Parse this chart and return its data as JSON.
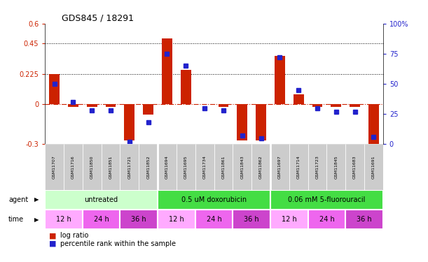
{
  "title": "GDS845 / 18291",
  "samples": [
    "GSM11707",
    "GSM11716",
    "GSM11850",
    "GSM11851",
    "GSM11721",
    "GSM11852",
    "GSM11694",
    "GSM11695",
    "GSM11734",
    "GSM11861",
    "GSM11843",
    "GSM11862",
    "GSM11697",
    "GSM11714",
    "GSM11723",
    "GSM11845",
    "GSM11683",
    "GSM11691"
  ],
  "log_ratio": [
    0.225,
    -0.02,
    -0.02,
    -0.02,
    -0.27,
    -0.08,
    0.49,
    0.255,
    0.0,
    -0.02,
    -0.27,
    -0.27,
    0.36,
    0.07,
    -0.02,
    -0.02,
    -0.02,
    -0.32
  ],
  "percentile_rank": [
    50,
    35,
    28,
    28,
    2,
    18,
    75,
    65,
    30,
    28,
    7,
    5,
    72,
    45,
    30,
    27,
    27,
    6
  ],
  "agents": [
    {
      "label": "untreated",
      "start": 0,
      "end": 6,
      "color": "#ccffcc"
    },
    {
      "label": "0.5 uM doxorubicin",
      "start": 6,
      "end": 12,
      "color": "#44dd44"
    },
    {
      "label": "0.06 mM 5-fluorouracil",
      "start": 12,
      "end": 18,
      "color": "#44dd44"
    }
  ],
  "times": [
    {
      "label": "12 h",
      "start": 0,
      "end": 2,
      "color": "#ffaaff"
    },
    {
      "label": "24 h",
      "start": 2,
      "end": 4,
      "color": "#ee66ee"
    },
    {
      "label": "36 h",
      "start": 4,
      "end": 6,
      "color": "#cc44cc"
    },
    {
      "label": "12 h",
      "start": 6,
      "end": 8,
      "color": "#ffaaff"
    },
    {
      "label": "24 h",
      "start": 8,
      "end": 10,
      "color": "#ee66ee"
    },
    {
      "label": "36 h",
      "start": 10,
      "end": 12,
      "color": "#cc44cc"
    },
    {
      "label": "12 h",
      "start": 12,
      "end": 14,
      "color": "#ffaaff"
    },
    {
      "label": "24 h",
      "start": 14,
      "end": 16,
      "color": "#ee66ee"
    },
    {
      "label": "36 h",
      "start": 16,
      "end": 18,
      "color": "#cc44cc"
    }
  ],
  "ylim": [
    -0.3,
    0.6
  ],
  "y2lim": [
    0,
    100
  ],
  "yticks": [
    -0.3,
    0,
    0.225,
    0.45,
    0.6
  ],
  "ytick_labels": [
    "-0.3",
    "0",
    "0.225",
    "0.45",
    "0.6"
  ],
  "y2ticks": [
    0,
    25,
    50,
    75,
    100
  ],
  "y2tick_labels": [
    "0",
    "25",
    "50",
    "75",
    "100%"
  ],
  "hlines": [
    0.225,
    0.45
  ],
  "bar_color": "#cc2200",
  "dot_color": "#2222cc",
  "background_color": "#ffffff",
  "plot_bg": "#ffffff",
  "label_bg": "#cccccc",
  "sample_cell_color": "#cccccc"
}
